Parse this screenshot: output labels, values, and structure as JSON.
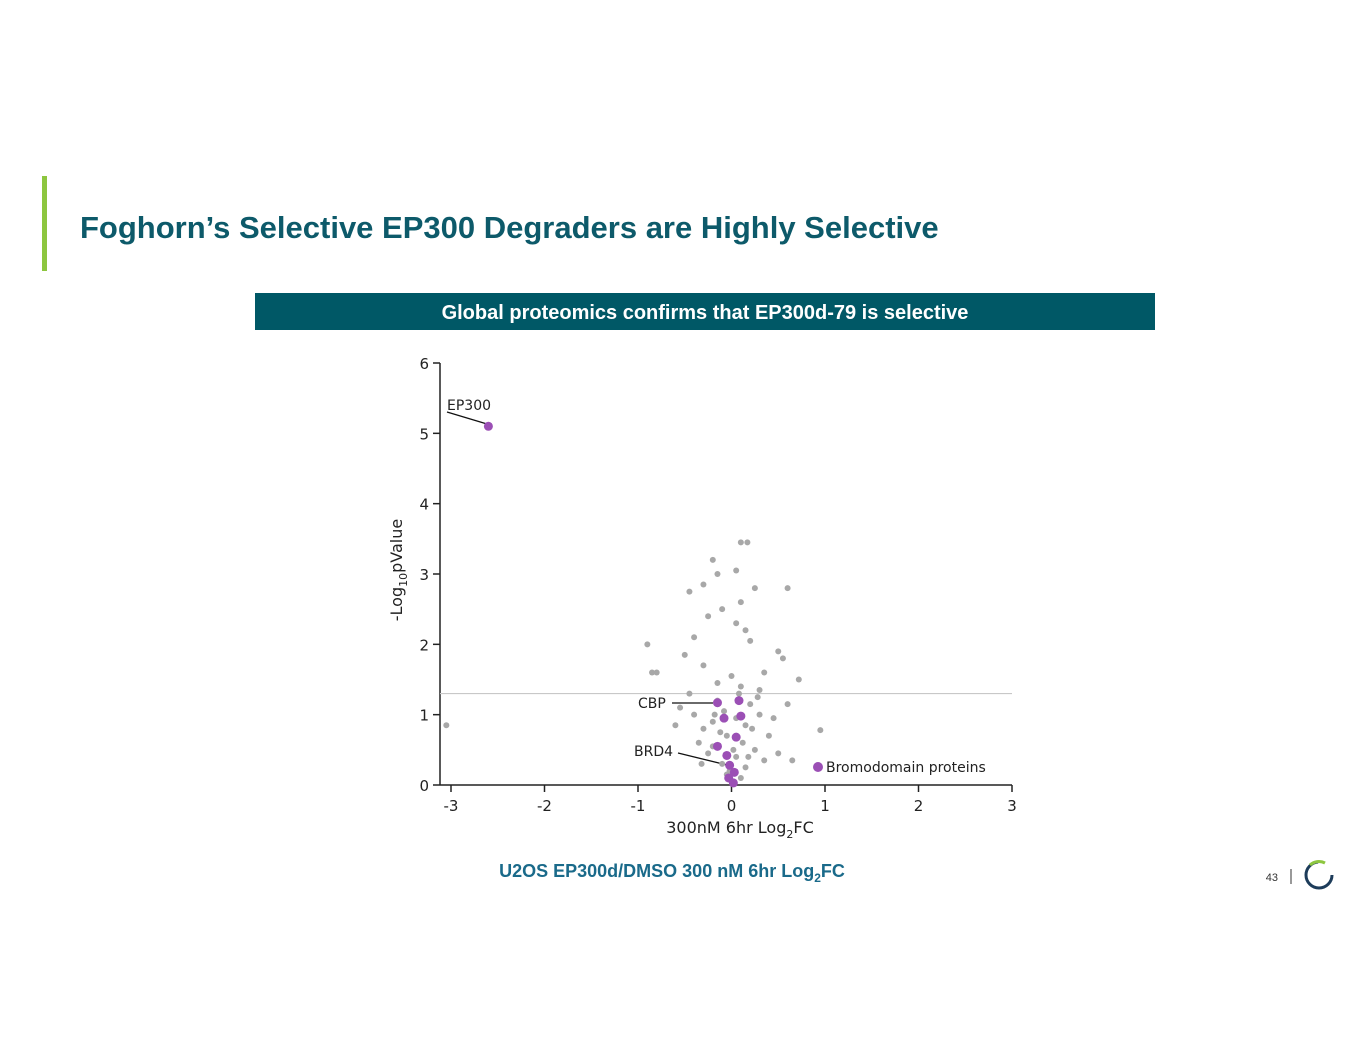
{
  "header": {
    "title": "Foghorn’s Selective EP300 Degraders are Highly Selective"
  },
  "banner": "Global proteomics confirms that EP300d-79 is selective",
  "caption": [
    "U2OS EP300d/DMSO 300 nM 6hr Log",
    "2",
    "FC"
  ],
  "page_number": "43",
  "chart_data": {
    "type": "scatter",
    "x_label": [
      "300nM 6hr Log",
      "2",
      "FC"
    ],
    "y_label": [
      "-Log",
      "10",
      "pValue"
    ],
    "xlim": [
      -3,
      3
    ],
    "xticks": [
      -3,
      -2,
      -1,
      0,
      1,
      2,
      3
    ],
    "ylim": [
      0,
      6
    ],
    "yticks": [
      0,
      1,
      2,
      3,
      4,
      5,
      6
    ],
    "hline": 1.3,
    "annotations": [
      "EP300",
      "CBP",
      "BRD4"
    ],
    "legend": "lower right",
    "series": [
      {
        "color": "#a8a8a8",
        "x": [
          -3.05,
          0.1,
          0.17,
          -0.2,
          -0.15,
          0.05,
          -0.3,
          0.25,
          0.6,
          -0.45,
          0.1,
          -0.1,
          0.05,
          -0.25,
          0.15,
          -0.4,
          0.2,
          -0.9,
          0.5,
          -0.5,
          0.55,
          -0.85,
          -0.8,
          0.72,
          -0.3,
          0.35,
          0.0,
          -0.15,
          0.1,
          0.3,
          -0.45,
          0.6,
          0.95,
          -0.4,
          0.3,
          -0.2,
          0.15,
          0.4,
          -0.35,
          0.25,
          0.05,
          -0.1,
          0.15,
          -0.05,
          0.1,
          -0.2,
          0.35,
          -0.3,
          0.45,
          0.0,
          -0.55,
          0.5,
          -0.15,
          0.2,
          -0.05,
          0.05,
          0.65,
          -0.6,
          -0.25,
          0.12,
          -0.12,
          0.22,
          -0.32,
          0.28,
          -0.08,
          0.08,
          -0.18,
          0.18,
          0.02,
          -0.02
        ],
        "y": [
          0.85,
          3.45,
          3.45,
          3.2,
          3.0,
          3.05,
          2.85,
          2.8,
          2.8,
          2.75,
          2.6,
          2.5,
          2.3,
          2.4,
          2.2,
          2.1,
          2.05,
          2.0,
          1.9,
          1.85,
          1.8,
          1.6,
          1.6,
          1.5,
          1.7,
          1.6,
          1.55,
          1.45,
          1.4,
          1.35,
          1.3,
          1.15,
          0.78,
          1.0,
          1.0,
          0.9,
          0.85,
          0.7,
          0.6,
          0.5,
          0.4,
          0.3,
          0.25,
          0.15,
          0.1,
          0.55,
          0.35,
          0.8,
          0.95,
          0.05,
          1.1,
          0.45,
          1.2,
          1.15,
          0.7,
          0.95,
          0.35,
          0.85,
          0.45,
          0.6,
          0.75,
          0.8,
          0.3,
          1.25,
          1.05,
          1.3,
          1.0,
          0.4,
          0.5,
          0.2
        ]
      },
      {
        "name": "Bromodomain proteins",
        "color": "#9b4fb5",
        "x": [
          -2.6,
          -0.15,
          0.08,
          -0.08,
          0.1,
          0.05,
          -0.15,
          -0.05,
          -0.02,
          0.03,
          -0.03,
          0.02
        ],
        "y": [
          5.1,
          1.17,
          1.2,
          0.95,
          0.98,
          0.68,
          0.55,
          0.42,
          0.28,
          0.18,
          0.1,
          0.03
        ]
      }
    ]
  }
}
